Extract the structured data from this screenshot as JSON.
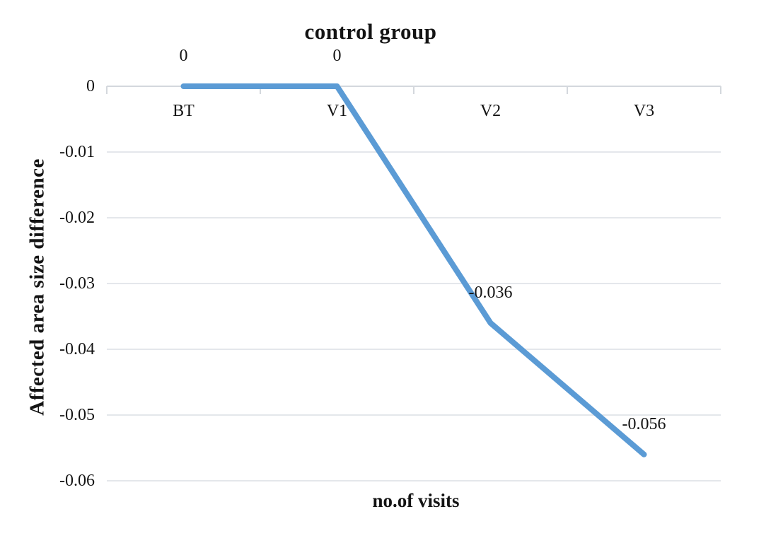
{
  "chart_data": {
    "type": "line",
    "title": "control group",
    "xlabel": "no.of visits",
    "ylabel": "Affected area size difference",
    "categories": [
      "BT",
      "V1",
      "V2",
      "V3"
    ],
    "series": [
      {
        "name": "control group",
        "values": [
          0,
          0,
          -0.036,
          -0.056
        ]
      }
    ],
    "data_labels": [
      "0",
      "0",
      "-0.036",
      "-0.056"
    ],
    "ylim": [
      -0.06,
      0
    ],
    "yticks": [
      0,
      -0.01,
      -0.02,
      -0.03,
      -0.04,
      -0.05,
      -0.06
    ],
    "ytick_labels": [
      "0",
      "-0.01",
      "-0.02",
      "-0.03",
      "-0.04",
      "-0.05",
      "-0.06"
    ],
    "grid": "horizontal",
    "legend": "none",
    "line_color": "#5B9BD5",
    "gridline_color": "#E4E7EB",
    "axis_color": "#D4D8DD",
    "text_color": "#141414"
  }
}
